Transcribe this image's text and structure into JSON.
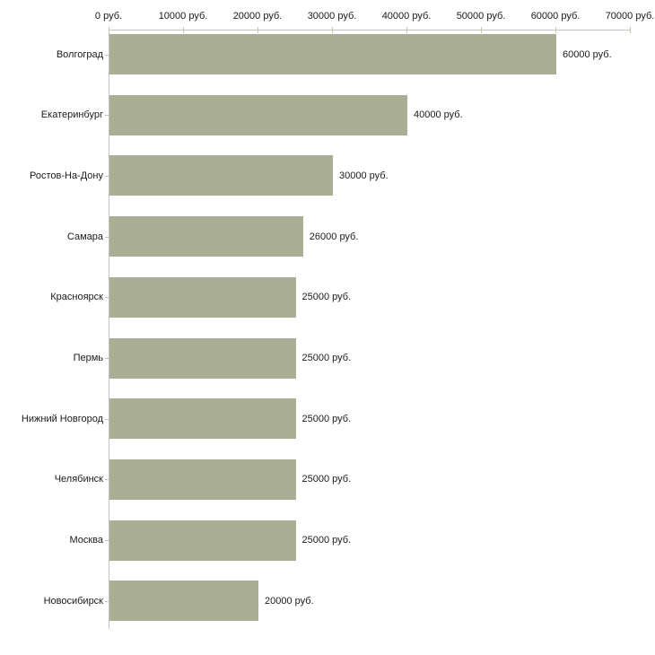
{
  "chart_data": {
    "type": "bar",
    "orientation": "horizontal",
    "categories": [
      "Волгоград",
      "Екатеринбург",
      "Ростов-На-Дону",
      "Самара",
      "Красноярск",
      "Пермь",
      "Нижний Новгород",
      "Челябинск",
      "Москва",
      "Новосибирск"
    ],
    "values": [
      60000,
      40000,
      30000,
      26000,
      25000,
      25000,
      25000,
      25000,
      25000,
      20000
    ],
    "value_labels": [
      "60000 руб.",
      "40000 руб.",
      "30000 руб.",
      "26000 руб.",
      "25000 руб.",
      "25000 руб.",
      "25000 руб.",
      "25000 руб.",
      "25000 руб.",
      "20000 руб."
    ],
    "unit": "руб.",
    "x_tick_values": [
      0,
      10000,
      20000,
      30000,
      40000,
      50000,
      60000,
      70000
    ],
    "x_tick_labels": [
      "0 руб.",
      "10000 руб.",
      "20000 руб.",
      "30000 руб.",
      "40000 руб.",
      "50000 руб.",
      "60000 руб.",
      "70000 руб."
    ],
    "xlim": [
      0,
      70000
    ],
    "grid": false,
    "legend": "none",
    "title": "",
    "xlabel": "",
    "ylabel": "",
    "colors": {
      "bar": "#a9ae95",
      "axis": "#c3c3c3",
      "tick": "#c9c5a0",
      "text": "#1a1a1a",
      "background": "#ffffff"
    }
  }
}
